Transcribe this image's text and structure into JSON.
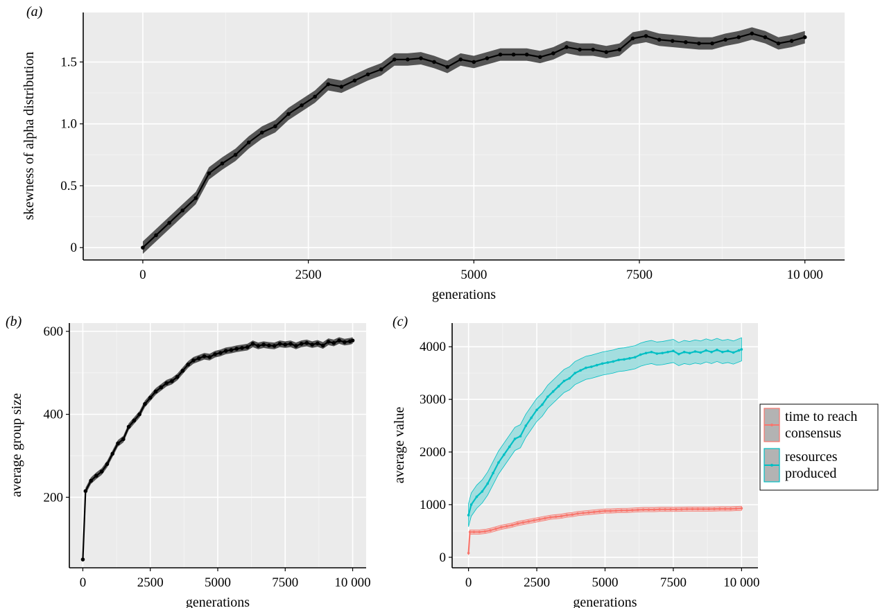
{
  "chart_data": [
    {
      "panel": "(a)",
      "type": "line",
      "xlabel": "generations",
      "ylabel": "skewness of alpha distribution",
      "xlim": [
        -900,
        10600
      ],
      "ylim": [
        -0.1,
        1.9
      ],
      "xticks": [
        0,
        2500,
        5000,
        7500,
        10000
      ],
      "xtick_labels": [
        "0",
        "2500",
        "5000",
        "7500",
        "10 000"
      ],
      "yticks": [
        0,
        0.5,
        1.0,
        1.5
      ],
      "ytick_labels": [
        "0",
        "0.5",
        "1.0",
        "1.5"
      ],
      "grid": true,
      "colors": {
        "line": "#000000",
        "band": "#555555"
      },
      "series": [
        {
          "x": [
            0,
            200,
            400,
            600,
            800,
            1000,
            1200,
            1400,
            1600,
            1800,
            2000,
            2200,
            2400,
            2600,
            2800,
            3000,
            3200,
            3400,
            3600,
            3800,
            4000,
            4200,
            4400,
            4600,
            4800,
            5000,
            5200,
            5400,
            5600,
            5800,
            6000,
            6200,
            6400,
            6600,
            6800,
            7000,
            7200,
            7400,
            7600,
            7800,
            8000,
            8200,
            8400,
            8600,
            8800,
            9000,
            9200,
            9400,
            9600,
            9800,
            10000
          ],
          "values": [
            0,
            0.1,
            0.2,
            0.3,
            0.4,
            0.6,
            0.68,
            0.75,
            0.85,
            0.93,
            0.98,
            1.08,
            1.15,
            1.22,
            1.32,
            1.3,
            1.35,
            1.4,
            1.44,
            1.52,
            1.52,
            1.53,
            1.5,
            1.46,
            1.52,
            1.5,
            1.53,
            1.56,
            1.56,
            1.56,
            1.54,
            1.57,
            1.62,
            1.6,
            1.6,
            1.58,
            1.6,
            1.69,
            1.71,
            1.68,
            1.67,
            1.66,
            1.65,
            1.65,
            1.68,
            1.7,
            1.73,
            1.7,
            1.65,
            1.67,
            1.7
          ],
          "band": 0.05
        }
      ]
    },
    {
      "panel": "(b)",
      "type": "line",
      "xlabel": "generations",
      "ylabel": "average group size",
      "xlim": [
        -500,
        10500
      ],
      "ylim": [
        30,
        620
      ],
      "xticks": [
        0,
        2500,
        5000,
        7500,
        10000
      ],
      "xtick_labels": [
        "0",
        "2500",
        "5000",
        "7500",
        "10 000"
      ],
      "yticks": [
        200,
        400,
        600
      ],
      "ytick_labels": [
        "200",
        "400",
        "600"
      ],
      "grid": true,
      "colors": {
        "line": "#000000",
        "band": "#555555"
      },
      "series": [
        {
          "x": [
            0,
            100,
            300,
            500,
            700,
            900,
            1100,
            1300,
            1500,
            1700,
            1900,
            2100,
            2300,
            2500,
            2700,
            2900,
            3100,
            3300,
            3500,
            3700,
            3900,
            4100,
            4300,
            4500,
            4700,
            4900,
            5100,
            5300,
            5500,
            5700,
            5900,
            6100,
            6300,
            6500,
            6700,
            6900,
            7100,
            7300,
            7500,
            7700,
            7900,
            8100,
            8300,
            8500,
            8700,
            8900,
            9100,
            9300,
            9500,
            9700,
            9900,
            10000
          ],
          "values": [
            50,
            215,
            240,
            252,
            262,
            280,
            305,
            330,
            340,
            370,
            385,
            400,
            425,
            440,
            455,
            465,
            475,
            480,
            490,
            505,
            520,
            530,
            535,
            540,
            538,
            545,
            548,
            553,
            555,
            558,
            560,
            562,
            570,
            565,
            568,
            566,
            565,
            570,
            568,
            570,
            565,
            570,
            572,
            568,
            571,
            566,
            575,
            572,
            578,
            574,
            576,
            578
          ],
          "band": 8
        }
      ]
    },
    {
      "panel": "(c)",
      "type": "line",
      "xlabel": "generations",
      "ylabel": "average value",
      "xlim": [
        -600,
        10600
      ],
      "ylim": [
        -200,
        4450
      ],
      "xticks": [
        0,
        2500,
        5000,
        7500,
        10000
      ],
      "xtick_labels": [
        "0",
        "2500",
        "5000",
        "7500",
        "10 000"
      ],
      "yticks": [
        0,
        1000,
        2000,
        3000,
        4000
      ],
      "ytick_labels": [
        "0",
        "1000",
        "2000",
        "3000",
        "4000"
      ],
      "grid": true,
      "legend": "right",
      "series": [
        {
          "name": "time to reach consensus",
          "legend_lines": [
            "time to reach",
            "consensus"
          ],
          "color": "#F8766D",
          "x": [
            0,
            50,
            200,
            400,
            600,
            800,
            1000,
            1200,
            1400,
            1600,
            1800,
            2000,
            2200,
            2400,
            2600,
            2800,
            3000,
            3200,
            3400,
            3600,
            3800,
            4000,
            4200,
            4400,
            4600,
            4800,
            5000,
            5200,
            5400,
            5600,
            5800,
            6000,
            6200,
            6400,
            6600,
            6800,
            7000,
            7200,
            7400,
            7600,
            7800,
            8000,
            8200,
            8400,
            8600,
            8800,
            9000,
            9200,
            9400,
            9600,
            9800,
            10000
          ],
          "values": [
            80,
            480,
            480,
            480,
            490,
            510,
            540,
            570,
            590,
            610,
            640,
            660,
            680,
            700,
            720,
            740,
            760,
            770,
            780,
            800,
            810,
            830,
            840,
            850,
            860,
            870,
            880,
            880,
            885,
            890,
            890,
            895,
            900,
            905,
            905,
            905,
            910,
            910,
            910,
            910,
            912,
            915,
            915,
            915,
            915,
            915,
            918,
            920,
            920,
            920,
            925,
            930
          ],
          "band": 40
        },
        {
          "name": "resources produced",
          "legend_lines": [
            "resources",
            "produced"
          ],
          "color": "#00BFC4",
          "x": [
            0,
            100,
            300,
            500,
            700,
            900,
            1100,
            1300,
            1500,
            1700,
            1900,
            2100,
            2300,
            2500,
            2700,
            2900,
            3100,
            3300,
            3500,
            3700,
            3900,
            4100,
            4300,
            4500,
            4700,
            4900,
            5100,
            5300,
            5500,
            5700,
            5900,
            6100,
            6300,
            6500,
            6700,
            6900,
            7100,
            7300,
            7500,
            7700,
            7900,
            8100,
            8300,
            8500,
            8700,
            8900,
            9100,
            9300,
            9500,
            9700,
            9900,
            10000
          ],
          "values": [
            800,
            1000,
            1150,
            1250,
            1400,
            1600,
            1800,
            1950,
            2100,
            2250,
            2300,
            2500,
            2650,
            2800,
            2900,
            3050,
            3150,
            3250,
            3350,
            3400,
            3500,
            3550,
            3600,
            3620,
            3650,
            3680,
            3700,
            3720,
            3750,
            3760,
            3780,
            3800,
            3850,
            3880,
            3900,
            3870,
            3880,
            3900,
            3920,
            3860,
            3900,
            3880,
            3910,
            3890,
            3930,
            3900,
            3940,
            3900,
            3920,
            3890,
            3930,
            3950
          ],
          "band": 220
        }
      ]
    }
  ]
}
